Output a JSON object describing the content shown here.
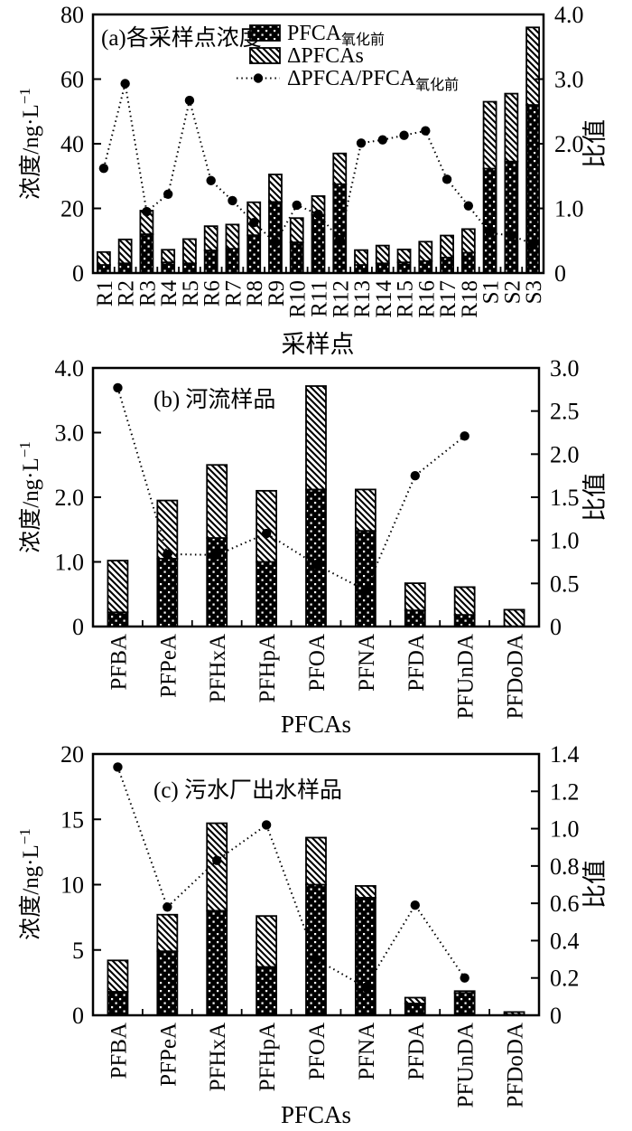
{
  "figure_title": "PFCA oxidation stacked-bar figure",
  "colors": {
    "ink": "#000000",
    "background": "#ffffff"
  },
  "legend": {
    "items": [
      {
        "swatch": "dots",
        "label_main": "PFCA",
        "label_sub": "氧化前"
      },
      {
        "swatch": "hatch",
        "label_main": "ΔPFCAs",
        "label_sub": ""
      },
      {
        "swatch": "line",
        "label_main": "ΔPFCA/PFCA",
        "label_sub": "氧化前"
      }
    ]
  },
  "chart_data": [
    {
      "id": "a",
      "type": "bar",
      "subtype": "stacked-bar-with-line",
      "title": "(a)各采样点浓度",
      "xlabel": "采样点",
      "ylabel_left_base": "浓度/ng·L",
      "ylabel_left_sup": "−1",
      "ylabel_right": "比值",
      "categories": [
        "R1",
        "R2",
        "R3",
        "R4",
        "R5",
        "R6",
        "R7",
        "R8",
        "R9",
        "R10",
        "R11",
        "R12",
        "R13",
        "R14",
        "R15",
        "R16",
        "R17",
        "R18",
        "S1",
        "S2",
        "S3"
      ],
      "series": [
        {
          "name": "PFCA氧化前",
          "role": "bar-base",
          "pattern": "dots",
          "values": [
            2.5,
            3.0,
            12.0,
            3.3,
            3.0,
            7.0,
            7.5,
            11.7,
            22.0,
            9.5,
            18.0,
            27.5,
            2.5,
            3.0,
            3.3,
            3.7,
            4.8,
            6.3,
            32.3,
            34.5,
            52.0
          ]
        },
        {
          "name": "ΔPFCAs",
          "role": "bar-stack",
          "pattern": "hatch",
          "values": [
            4.0,
            7.4,
            7.3,
            3.9,
            7.5,
            7.5,
            7.5,
            10.2,
            8.5,
            7.5,
            5.8,
            9.5,
            4.6,
            5.5,
            4.0,
            6.0,
            6.8,
            7.3,
            20.7,
            21.0,
            24.0
          ]
        },
        {
          "name": "ΔPFCA/PFCA氧化前",
          "role": "line",
          "axis": "right",
          "values": [
            1.62,
            2.93,
            0.95,
            1.22,
            2.67,
            1.43,
            1.12,
            0.78,
            0.47,
            1.05,
            0.91,
            0.52,
            2.01,
            2.06,
            2.13,
            2.2,
            1.45,
            1.04,
            0.62,
            0.58,
            0.45
          ]
        }
      ],
      "ylim_left": [
        0,
        80
      ],
      "yticks_left": {
        "values": [
          0,
          20,
          40,
          60,
          80
        ],
        "labels": [
          "0",
          "20",
          "40",
          "60",
          "80"
        ]
      },
      "ylim_right": [
        0,
        4
      ],
      "yticks_right": {
        "values": [
          0,
          1,
          2,
          3,
          4
        ],
        "labels": [
          "0",
          "1.0",
          "2.0",
          "3.0",
          "4.0"
        ]
      },
      "grid": false,
      "legend_position": "top-center",
      "has_legend": true
    },
    {
      "id": "b",
      "type": "bar",
      "subtype": "stacked-bar-with-line",
      "title": "(b) 河流样品",
      "xlabel": "PFCAs",
      "ylabel_left_base": "浓度/ng·L",
      "ylabel_left_sup": "−1",
      "ylabel_right": "比值",
      "categories": [
        "PFBA",
        "PFPeA",
        "PFHxA",
        "PFHpA",
        "PFOA",
        "PFNA",
        "PFDA",
        "PFUnDA",
        "PFDoDA"
      ],
      "series": [
        {
          "name": "PFCA氧化前",
          "role": "bar-base",
          "pattern": "dots",
          "values": [
            0.22,
            1.05,
            1.37,
            1.0,
            2.12,
            1.48,
            0.25,
            0.18,
            0.0
          ]
        },
        {
          "name": "ΔPFCAs",
          "role": "bar-stack",
          "pattern": "hatch",
          "values": [
            0.8,
            0.9,
            1.13,
            1.1,
            1.6,
            0.64,
            0.42,
            0.43,
            0.26
          ]
        },
        {
          "name": "ΔPFCA/PFCA氧化前",
          "role": "line",
          "axis": "right",
          "values": [
            2.77,
            0.84,
            0.83,
            1.08,
            0.72,
            0.42,
            1.75,
            2.21,
            null
          ]
        }
      ],
      "ylim_left": [
        0,
        4
      ],
      "yticks_left": {
        "values": [
          0,
          1,
          2,
          3,
          4
        ],
        "labels": [
          "0",
          "1.0",
          "2.0",
          "3.0",
          "4.0"
        ]
      },
      "ylim_right": [
        0,
        3
      ],
      "yticks_right": {
        "values": [
          0,
          0.5,
          1,
          1.5,
          2,
          2.5,
          3
        ],
        "labels": [
          "0",
          "0.5",
          "1.0",
          "1.5",
          "2.0",
          "2.5",
          "3.0"
        ]
      },
      "grid": false,
      "has_legend": false
    },
    {
      "id": "c",
      "type": "bar",
      "subtype": "stacked-bar-with-line",
      "title": "(c) 污水厂出水样品",
      "xlabel": "PFCAs",
      "ylabel_left_base": "浓度/ng·L",
      "ylabel_left_sup": "−1",
      "ylabel_right": "比值",
      "categories": [
        "PFBA",
        "PFPeA",
        "PFHxA",
        "PFHpA",
        "PFOA",
        "PFNA",
        "PFDA",
        "PFUnDA",
        "PFDoDA"
      ],
      "series": [
        {
          "name": "PFCA氧化前",
          "role": "bar-base",
          "pattern": "dots",
          "values": [
            1.8,
            4.9,
            8.0,
            3.7,
            10.0,
            9.0,
            0.9,
            1.7,
            0.05
          ]
        },
        {
          "name": "ΔPFCAs",
          "role": "bar-stack",
          "pattern": "hatch",
          "values": [
            2.4,
            2.8,
            6.7,
            3.9,
            3.6,
            0.9,
            0.45,
            0.15,
            0.2
          ]
        },
        {
          "name": "ΔPFCA/PFCA氧化前",
          "role": "line",
          "axis": "right",
          "values": [
            1.33,
            0.58,
            0.83,
            1.02,
            0.3,
            0.15,
            0.59,
            0.2,
            null
          ]
        }
      ],
      "ylim_left": [
        0,
        20
      ],
      "yticks_left": {
        "values": [
          0,
          5,
          10,
          15,
          20
        ],
        "labels": [
          "0",
          "5",
          "10",
          "15",
          "20"
        ]
      },
      "ylim_right": [
        0,
        1.4
      ],
      "yticks_right": {
        "values": [
          0,
          0.2,
          0.4,
          0.6,
          0.8,
          1.0,
          1.2,
          1.4
        ],
        "labels": [
          "0",
          "0.2",
          "0.4",
          "0.6",
          "0.8",
          "1.0",
          "1.2",
          "1.4"
        ]
      },
      "grid": false,
      "has_legend": false
    }
  ]
}
